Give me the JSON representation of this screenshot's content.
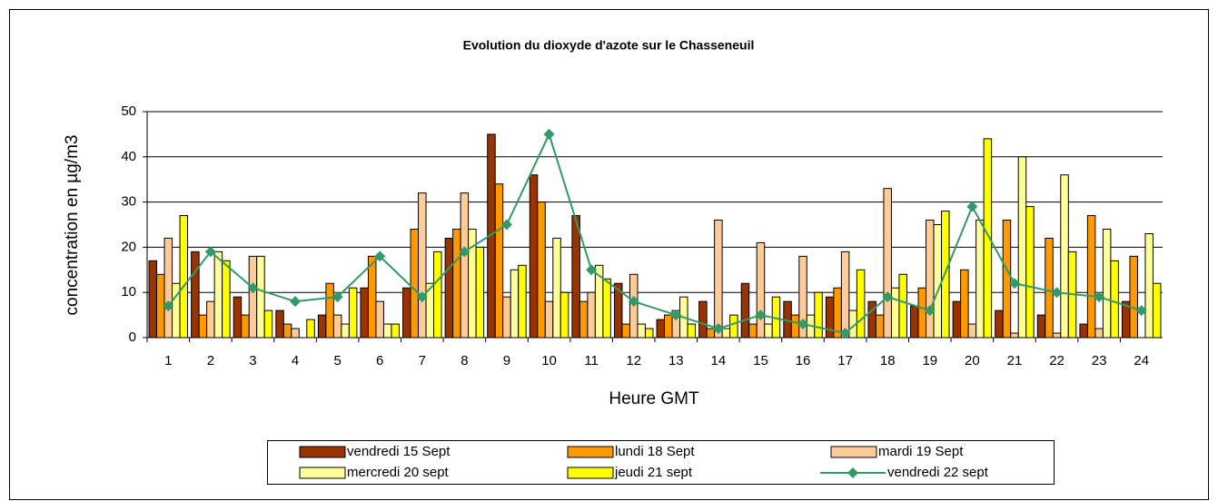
{
  "chart_data": {
    "type": "bar",
    "title": "Evolution du dioxyde d'azote sur le Chasseneuil",
    "y_label": "concentration en µg/m3",
    "x_label": "Heure GMT",
    "categories": [
      "1",
      "2",
      "3",
      "4",
      "5",
      "6",
      "7",
      "8",
      "9",
      "10",
      "11",
      "12",
      "13",
      "14",
      "15",
      "16",
      "17",
      "18",
      "19",
      "20",
      "21",
      "22",
      "23",
      "24"
    ],
    "ylim": [
      0,
      50
    ],
    "yticks": [
      0,
      10,
      20,
      30,
      40,
      50
    ],
    "grid": true,
    "series": [
      {
        "name": "vendredi 15 Sept",
        "color": "#993300",
        "type": "bar",
        "values": [
          17,
          19,
          9,
          6,
          5,
          11,
          11,
          22,
          45,
          36,
          27,
          12,
          4,
          8,
          12,
          8,
          9,
          8,
          7,
          8,
          6,
          5,
          3,
          8
        ]
      },
      {
        "name": "lundi 18 Sept",
        "color": "#ff9900",
        "type": "bar",
        "values": [
          14,
          5,
          5,
          3,
          12,
          18,
          24,
          24,
          34,
          30,
          8,
          3,
          5,
          2,
          3,
          5,
          11,
          5,
          11,
          15,
          26,
          22,
          27,
          18
        ]
      },
      {
        "name": "mardi 19 Sept",
        "color": "#ffcc99",
        "type": "bar",
        "values": [
          22,
          8,
          18,
          2,
          5,
          8,
          32,
          32,
          9,
          8,
          10,
          14,
          6,
          26,
          21,
          18,
          19,
          33,
          26,
          3,
          1,
          1,
          2,
          0
        ]
      },
      {
        "name": "mercredi 20 sept",
        "color": "#ffff99",
        "type": "bar",
        "values": [
          12,
          19,
          18,
          0,
          3,
          3,
          12,
          24,
          15,
          22,
          16,
          3,
          9,
          2,
          3,
          5,
          6,
          11,
          25,
          26,
          40,
          36,
          24,
          23
        ]
      },
      {
        "name": "jeudi 21 sept",
        "color": "#ffff00",
        "type": "bar",
        "values": [
          27,
          17,
          6,
          4,
          11,
          3,
          19,
          20,
          16,
          10,
          13,
          2,
          3,
          5,
          9,
          10,
          15,
          14,
          28,
          44,
          29,
          19,
          17,
          12
        ]
      },
      {
        "name": "vendredi 22 sept",
        "color": "#339966",
        "type": "line",
        "values": [
          7,
          19,
          11,
          8,
          9,
          18,
          9,
          19,
          25,
          45,
          15,
          8,
          5,
          2,
          5,
          3,
          1,
          9,
          6,
          29,
          12,
          10,
          9,
          6
        ]
      }
    ]
  }
}
